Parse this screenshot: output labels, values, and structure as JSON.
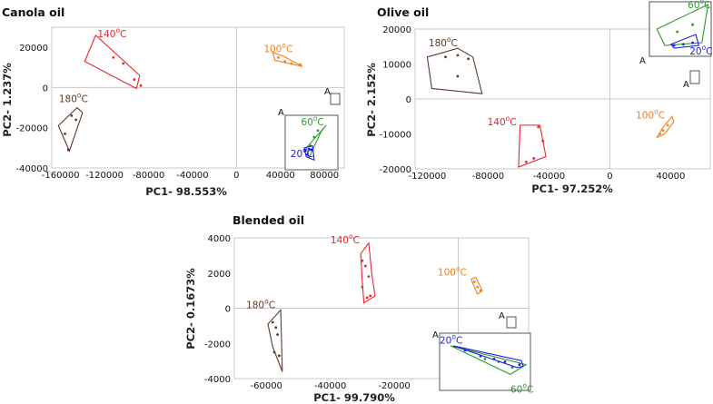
{
  "colors": {
    "20C": "#1f1fe0",
    "60C": "#2a9a2a",
    "100C": "#f07f1e",
    "140C": "#e8262b",
    "180C": "#5b3a2a"
  },
  "chart_data": [
    {
      "type": "scatter",
      "title": "Canola oil",
      "xlabel": "PC1- 98.553%",
      "ylabel": "PC2- 1.237%",
      "xlim": [
        -168000,
        98000
      ],
      "ylim": [
        -40000,
        30000
      ],
      "xticks": [
        -160000,
        -120000,
        -80000,
        -40000,
        0,
        40000,
        80000
      ],
      "xtick_labels": [
        "-160000",
        "-120000",
        "-80000",
        "-40000",
        "0",
        "40000",
        "80000"
      ],
      "yticks": [
        20000,
        0,
        -20000,
        -40000
      ],
      "ytick_labels": [
        "20000",
        "0",
        "-20000",
        "-40000"
      ],
      "grid": "zero lines",
      "groups": [
        {
          "key": "140C",
          "label": "140",
          "unit": "C",
          "points": [
            [
              -112000,
              15000
            ],
            [
              -103000,
              12000
            ],
            [
              -93000,
              4000
            ],
            [
              -87000,
              1000
            ]
          ],
          "hull": [
            [
              -128000,
              26000
            ],
            [
              -88000,
              6000
            ],
            [
              -91000,
              -500
            ],
            [
              -138000,
              13000
            ]
          ]
        },
        {
          "key": "100C",
          "label": "100",
          "unit": "C",
          "points": [
            [
              38000,
              15000
            ],
            [
              44000,
              13000
            ],
            [
              50000,
              12000
            ],
            [
              58000,
              11500
            ]
          ],
          "hull": [
            [
              33000,
              17500
            ],
            [
              43000,
              15500
            ],
            [
              60000,
              10500
            ],
            [
              35000,
              13500
            ]
          ]
        },
        {
          "key": "180C",
          "label": "180",
          "unit": "C",
          "points": [
            [
              -156000,
              -23000
            ],
            [
              -150000,
              -14000
            ],
            [
              -146000,
              -16000
            ],
            [
              -153000,
              -31000
            ]
          ],
          "hull": [
            [
              -145000,
              -10000
            ],
            [
              -140000,
              -12500
            ],
            [
              -152000,
              -31500
            ],
            [
              -162000,
              -19000
            ]
          ]
        }
      ],
      "inset": {
        "label": "A",
        "groups": [
          {
            "key": "60C",
            "label": "60",
            "unit": "C",
            "points": [
              [
                0.62,
                0.28
              ],
              [
                0.55,
                0.4
              ],
              [
                0.48,
                0.56
              ]
            ],
            "hull": [
              [
                0.78,
                0.18
              ],
              [
                0.4,
                0.6
              ],
              [
                0.45,
                0.78
              ],
              [
                0.68,
                0.3
              ]
            ]
          },
          {
            "key": "20C",
            "label": "20",
            "unit": "C",
            "points": [
              [
                0.45,
                0.62
              ],
              [
                0.38,
                0.65
              ],
              [
                0.42,
                0.72
              ],
              [
                0.5,
                0.63
              ]
            ],
            "hull": [
              [
                0.36,
                0.6
              ],
              [
                0.52,
                0.56
              ],
              [
                0.55,
                0.82
              ],
              [
                0.4,
                0.76
              ]
            ]
          }
        ]
      },
      "marker_label": "A"
    },
    {
      "type": "scatter",
      "title": "Olive oil",
      "xlabel": "PC1- 97.252%",
      "ylabel": "PC2- 2.152%",
      "xlim": [
        -128000,
        66000
      ],
      "ylim": [
        -20000,
        20000
      ],
      "xticks": [
        -120000,
        -80000,
        -40000,
        0,
        40000
      ],
      "xtick_labels": [
        "-120000",
        "-80000",
        "-40000",
        "0",
        "40000"
      ],
      "yticks": [
        20000,
        10000,
        0,
        -10000,
        -20000
      ],
      "ytick_labels": [
        "20000",
        "10000",
        "0",
        "-10000",
        "-20000"
      ],
      "grid": "zero lines",
      "groups": [
        {
          "key": "180C",
          "label": "180",
          "unit": "C",
          "points": [
            [
              -108000,
              12000
            ],
            [
              -100000,
              12500
            ],
            [
              -93000,
              11500
            ],
            [
              -100000,
              6500
            ]
          ],
          "hull": [
            [
              -120000,
              12000
            ],
            [
              -100000,
              14500
            ],
            [
              -90000,
              12000
            ],
            [
              -84000,
              1500
            ],
            [
              -117000,
              3000
            ]
          ]
        },
        {
          "key": "140C",
          "label": "140",
          "unit": "C",
          "points": [
            [
              -47000,
              -8000
            ],
            [
              -44000,
              -12000
            ],
            [
              -50000,
              -17000
            ],
            [
              -55000,
              -18000
            ]
          ],
          "hull": [
            [
              -59000,
              -7500
            ],
            [
              -46000,
              -7500
            ],
            [
              -42000,
              -16500
            ],
            [
              -60000,
              -19500
            ]
          ]
        },
        {
          "key": "100C",
          "label": "100",
          "unit": "C",
          "points": [
            [
              38000,
              -7500
            ],
            [
              35000,
              -9000
            ],
            [
              33000,
              -10000
            ]
          ],
          "hull": [
            [
              41000,
              -5000
            ],
            [
              42000,
              -6500
            ],
            [
              36000,
              -10000
            ],
            [
              31000,
              -11000
            ],
            [
              35000,
              -8000
            ]
          ]
        }
      ],
      "inset": {
        "label": "A",
        "groups": [
          {
            "key": "60C",
            "label": "60",
            "unit": "C",
            "points": [
              [
                0.45,
                0.55
              ],
              [
                0.7,
                0.42
              ]
            ],
            "hull": [
              [
                0.12,
                0.5
              ],
              [
                0.95,
                0.05
              ],
              [
                0.85,
                0.75
              ],
              [
                0.25,
                0.8
              ]
            ]
          },
          {
            "key": "20C",
            "label": "20",
            "unit": "C",
            "points": [
              [
                0.4,
                0.8
              ],
              [
                0.55,
                0.78
              ],
              [
                0.7,
                0.75
              ]
            ],
            "hull": [
              [
                0.35,
                0.78
              ],
              [
                0.75,
                0.6
              ],
              [
                0.8,
                0.8
              ],
              [
                0.4,
                0.85
              ]
            ]
          }
        ]
      },
      "marker_label": "A"
    },
    {
      "type": "scatter",
      "title": "Blended oil",
      "xlabel": "PC1- 99.790%",
      "ylabel": "PC2- 0.1673%",
      "xlim": [
        -70000,
        22000
      ],
      "ylim": [
        -4000,
        4000
      ],
      "xticks": [
        -60000,
        -40000,
        -20000,
        0
      ],
      "xtick_labels": [
        "-60000",
        "-40000",
        "-20000",
        "0"
      ],
      "yticks": [
        4000,
        2000,
        0,
        -2000,
        -4000
      ],
      "ytick_labels": [
        "4000",
        "2000",
        "0",
        "-2000",
        "-4000"
      ],
      "grid": "zero lines",
      "groups": [
        {
          "key": "140C",
          "label": "140",
          "unit": "C",
          "points": [
            [
              -30000,
              2700
            ],
            [
              -29000,
              2400
            ],
            [
              -28000,
              1800
            ],
            [
              -30000,
              1200
            ],
            [
              -28500,
              600
            ],
            [
              -27500,
              700
            ]
          ],
          "hull": [
            [
              -30500,
              3100
            ],
            [
              -28000,
              3700
            ],
            [
              -27000,
              1900
            ],
            [
              -26000,
              700
            ],
            [
              -29500,
              300
            ],
            [
              -30000,
              1500
            ]
          ]
        },
        {
          "key": "100C",
          "label": "100",
          "unit": "C",
          "points": [
            [
              5000,
              1500
            ],
            [
              6000,
              1200
            ],
            [
              7000,
              1000
            ]
          ],
          "hull": [
            [
              4000,
              1650
            ],
            [
              5500,
              1750
            ],
            [
              7500,
              1000
            ],
            [
              6000,
              800
            ]
          ]
        },
        {
          "key": "180C",
          "label": "180",
          "unit": "C",
          "points": [
            [
              -58000,
              -800
            ],
            [
              -57000,
              -1100
            ],
            [
              -56500,
              -1500
            ],
            [
              -57500,
              -2500
            ],
            [
              -56000,
              -2700
            ]
          ],
          "hull": [
            [
              -59500,
              -900
            ],
            [
              -55500,
              -100
            ],
            [
              -55000,
              -3600
            ],
            [
              -58000,
              -2200
            ]
          ]
        }
      ],
      "inset": {
        "label": "A",
        "groups": [
          {
            "key": "60C",
            "label": "60",
            "unit": "C",
            "points": [
              [
                0.5,
                0.45
              ],
              [
                0.65,
                0.5
              ],
              [
                0.8,
                0.6
              ]
            ],
            "hull": [
              [
                0.12,
                0.22
              ],
              [
                0.95,
                0.55
              ],
              [
                0.78,
                0.72
              ]
            ]
          },
          {
            "key": "20C",
            "label": "20",
            "unit": "C",
            "points": [
              [
                0.28,
                0.3
              ],
              [
                0.45,
                0.4
              ],
              [
                0.6,
                0.45
              ],
              [
                0.72,
                0.5
              ],
              [
                0.88,
                0.55
              ]
            ],
            "hull": [
              [
                0.15,
                0.22
              ],
              [
                0.9,
                0.48
              ],
              [
                0.92,
                0.58
              ],
              [
                0.85,
                0.6
              ]
            ]
          }
        ]
      },
      "marker_label": "A"
    }
  ]
}
